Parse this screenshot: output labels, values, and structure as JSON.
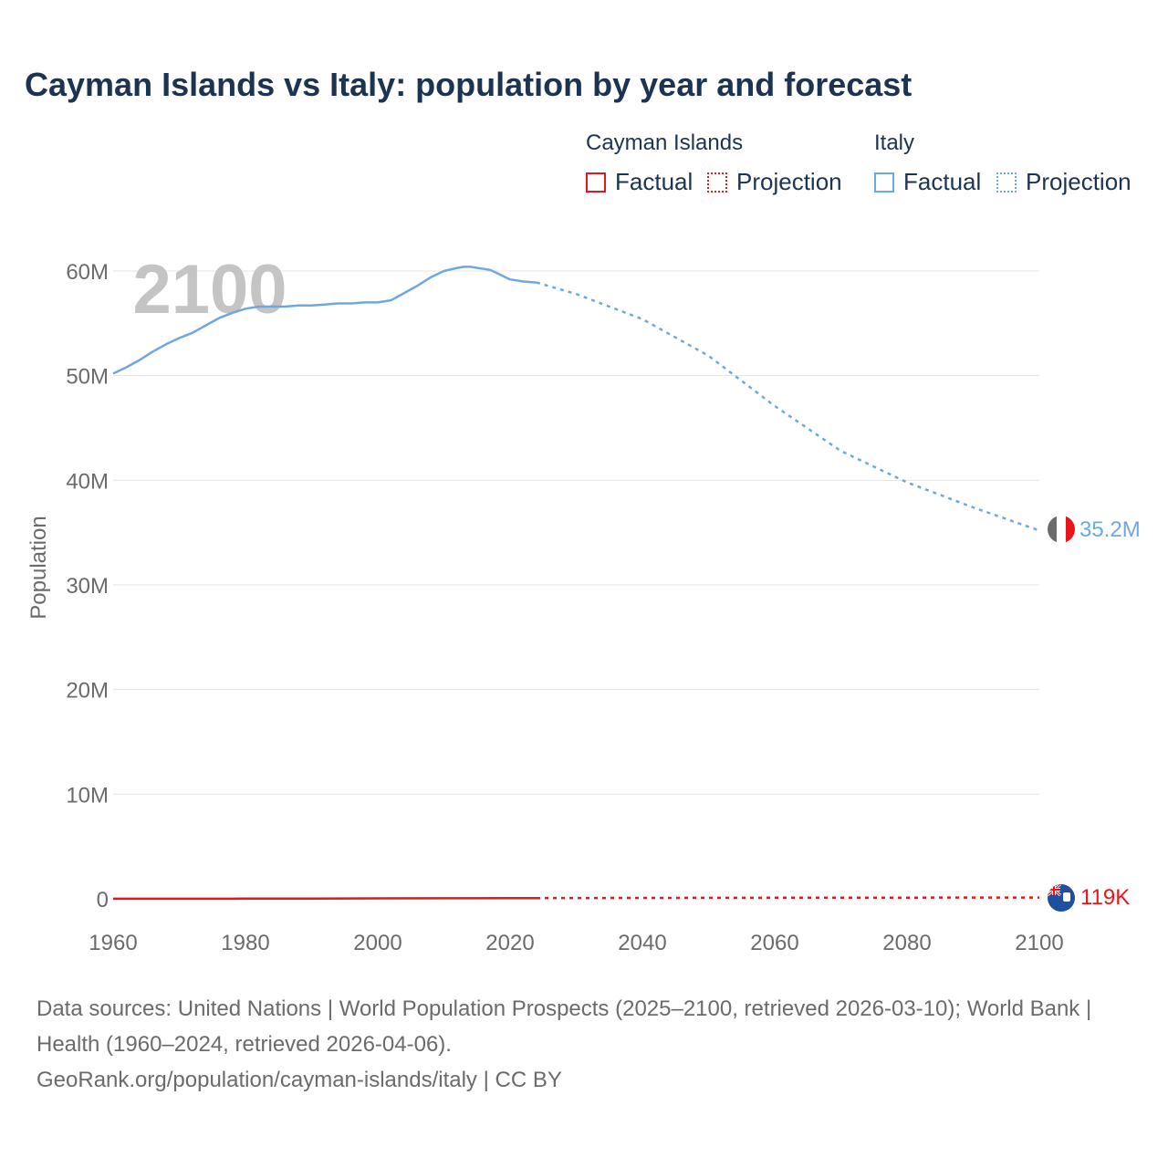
{
  "title": "Cayman Islands vs Italy: population by year and forecast",
  "legend": {
    "groups": [
      {
        "name": "Cayman Islands",
        "factual": "Factual",
        "projection": "Projection",
        "color": "#e8161b"
      },
      {
        "name": "Italy",
        "factual": "Factual",
        "projection": "Projection",
        "color": "#6fa8e0"
      }
    ]
  },
  "year_indicator": "2100",
  "end_labels": {
    "italy": "35.2M",
    "cayman": "119K"
  },
  "footer": {
    "line1": "Data sources: United Nations | World Population Prospects (2025–2100, retrieved 2026-03-10); World Bank | Health (1960–2024, retrieved 2026-04-06).",
    "line2": "GeoRank.org/population/cayman-islands/italy | CC BY"
  },
  "chart_data": {
    "type": "line",
    "title": "Cayman Islands vs Italy: population by year and forecast",
    "xlabel": "",
    "ylabel": "Population",
    "xlim": [
      1960,
      2100
    ],
    "ylim": [
      0,
      60000000
    ],
    "xticks": [
      1960,
      1980,
      2000,
      2020,
      2040,
      2060,
      2080,
      2100
    ],
    "yticks": [
      0,
      10000000,
      20000000,
      30000000,
      40000000,
      50000000,
      60000000
    ],
    "ytick_labels": [
      "0",
      "10M",
      "20M",
      "30M",
      "40M",
      "50M",
      "60M"
    ],
    "series": [
      {
        "name": "Italy",
        "color": "#6fa8e0",
        "factual": {
          "x": [
            1960,
            1962,
            1964,
            1966,
            1968,
            1970,
            1972,
            1974,
            1976,
            1978,
            1980,
            1982,
            1984,
            1986,
            1988,
            1990,
            1992,
            1994,
            1996,
            1998,
            2000,
            2002,
            2004,
            2006,
            2008,
            2010,
            2012,
            2013,
            2014,
            2016,
            2017,
            2018,
            2020,
            2022,
            2024
          ],
          "y": [
            50200000,
            50800000,
            51500000,
            52300000,
            53000000,
            53600000,
            54100000,
            54800000,
            55500000,
            56000000,
            56400000,
            56600000,
            56600000,
            56600000,
            56700000,
            56700000,
            56800000,
            56900000,
            56900000,
            57000000,
            57000000,
            57200000,
            57900000,
            58600000,
            59400000,
            60000000,
            60300000,
            60400000,
            60400000,
            60200000,
            60100000,
            59800000,
            59200000,
            59000000,
            58900000
          ]
        },
        "projection": {
          "x": [
            2024,
            2030,
            2040,
            2050,
            2060,
            2070,
            2080,
            2090,
            2100
          ],
          "y": [
            58900000,
            57800000,
            55400000,
            51900000,
            47100000,
            42800000,
            39800000,
            37400000,
            35200000
          ]
        }
      },
      {
        "name": "Cayman Islands",
        "color": "#e8161b",
        "factual": {
          "x": [
            1960,
            1970,
            1980,
            1990,
            2000,
            2010,
            2020,
            2024
          ],
          "y": [
            8000,
            10000,
            17000,
            26000,
            40000,
            56000,
            68000,
            73000
          ]
        },
        "projection": {
          "x": [
            2024,
            2040,
            2060,
            2080,
            2100
          ],
          "y": [
            73000,
            88000,
            103000,
            113000,
            119000
          ]
        }
      }
    ]
  }
}
